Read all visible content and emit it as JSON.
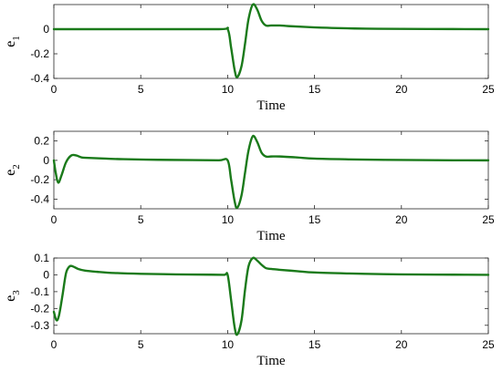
{
  "chart_data": [
    {
      "type": "line",
      "ylabel": "e",
      "ylabel_sub": "1",
      "xlabel": "Time",
      "xlim": [
        0,
        25
      ],
      "ylim": [
        -0.4,
        0.2
      ],
      "xticks": [
        0,
        5,
        10,
        15,
        20,
        25
      ],
      "xtick_labels": [
        "0",
        "5",
        "10",
        "15",
        "20",
        "25"
      ],
      "yticks": [
        0,
        -0.2,
        -0.4
      ],
      "ytick_labels": [
        "0",
        "-0.2",
        "-0.4"
      ],
      "color": "#1a7a1a",
      "series": [
        {
          "x": [
            0,
            5,
            9.5,
            10.0,
            10.2,
            10.4,
            10.55,
            10.8,
            11.0,
            11.2,
            11.45,
            11.7,
            11.95,
            12.2,
            12.5,
            13.0,
            13.5,
            14.5,
            16,
            18,
            20,
            23,
            25
          ],
          "y": [
            0,
            0,
            0,
            0,
            -0.15,
            -0.33,
            -0.39,
            -0.3,
            -0.12,
            0.08,
            0.2,
            0.16,
            0.07,
            0.03,
            0.03,
            0.03,
            0.025,
            0.018,
            0.01,
            0.004,
            0.002,
            0.001,
            0
          ]
        }
      ]
    },
    {
      "type": "line",
      "ylabel": "e",
      "ylabel_sub": "2",
      "xlabel": "Time",
      "xlim": [
        0,
        25
      ],
      "ylim": [
        -0.5,
        0.3
      ],
      "xticks": [
        0,
        5,
        10,
        15,
        20,
        25
      ],
      "xtick_labels": [
        "0",
        "5",
        "10",
        "15",
        "20",
        "25"
      ],
      "yticks": [
        0.2,
        0,
        -0.2,
        -0.4
      ],
      "ytick_labels": [
        "0.2",
        "0",
        "-0.2",
        "-0.4"
      ],
      "color": "#1a7a1a",
      "series": [
        {
          "x": [
            0,
            0.1,
            0.25,
            0.45,
            0.7,
            1.0,
            1.3,
            1.6,
            2.0,
            3.0,
            4.0,
            6,
            8,
            9.5,
            10.0,
            10.2,
            10.4,
            10.55,
            10.8,
            11.0,
            11.2,
            11.45,
            11.7,
            11.95,
            12.2,
            12.5,
            13.0,
            14,
            15,
            17,
            19,
            21,
            23,
            25
          ],
          "y": [
            0,
            -0.12,
            -0.23,
            -0.15,
            -0.02,
            0.05,
            0.05,
            0.03,
            0.025,
            0.018,
            0.012,
            0.006,
            0.003,
            0.001,
            0,
            -0.2,
            -0.42,
            -0.49,
            -0.36,
            -0.13,
            0.1,
            0.25,
            0.19,
            0.08,
            0.04,
            0.04,
            0.04,
            0.03,
            0.018,
            0.01,
            0.005,
            0.003,
            0.001,
            0
          ]
        }
      ]
    },
    {
      "type": "line",
      "ylabel": "e",
      "ylabel_sub": "3",
      "xlabel": "Time",
      "xlim": [
        0,
        25
      ],
      "ylim": [
        -0.35,
        0.1
      ],
      "xticks": [
        0,
        5,
        10,
        15,
        20,
        25
      ],
      "xtick_labels": [
        "0",
        "5",
        "10",
        "15",
        "20",
        "25"
      ],
      "yticks": [
        0.1,
        0,
        -0.1,
        -0.2,
        -0.3
      ],
      "ytick_labels": [
        "0.1",
        "0",
        "-0.1",
        "-0.2",
        "-0.3"
      ],
      "color": "#1a7a1a",
      "series": [
        {
          "x": [
            0,
            0.15,
            0.3,
            0.5,
            0.7,
            0.9,
            1.1,
            1.4,
            1.8,
            2.5,
            3.5,
            5,
            7,
            9,
            9.8,
            10.0,
            10.2,
            10.4,
            10.55,
            10.8,
            11.0,
            11.2,
            11.45,
            11.7,
            11.95,
            12.2,
            12.5,
            13.0,
            14,
            15,
            17,
            19,
            21,
            23,
            25
          ],
          "y": [
            -0.22,
            -0.27,
            -0.24,
            -0.12,
            0.01,
            0.05,
            0.05,
            0.035,
            0.025,
            0.018,
            0.011,
            0.006,
            0.003,
            0.001,
            0,
            0,
            -0.15,
            -0.31,
            -0.355,
            -0.27,
            -0.09,
            0.05,
            0.1,
            0.085,
            0.06,
            0.04,
            0.035,
            0.03,
            0.022,
            0.014,
            0.008,
            0.004,
            0.002,
            0.001,
            0
          ]
        }
      ]
    }
  ]
}
